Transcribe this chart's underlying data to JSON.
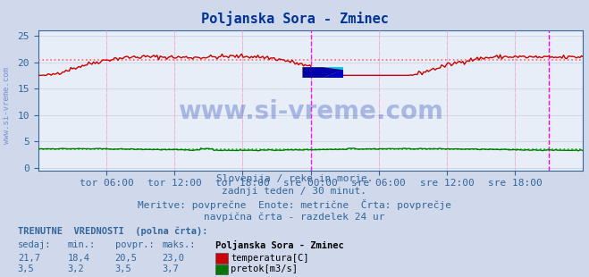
{
  "title": "Poljanska Sora - Zminec",
  "title_color": "#003399",
  "title_fontsize": 11,
  "bg_color": "#d0d8ec",
  "plot_bg_color": "#e8eef8",
  "x_ticks_labels": [
    "tor 06:00",
    "tor 12:00",
    "tor 18:00",
    "sre 00:00",
    "sre 06:00",
    "sre 12:00",
    "sre 18:00"
  ],
  "x_ticks_pos": [
    0.25,
    0.5,
    0.75,
    1.0,
    1.25,
    1.5,
    1.75
  ],
  "y_ticks": [
    0,
    5,
    10,
    15,
    20,
    25
  ],
  "ylim": [
    -0.5,
    26
  ],
  "xlim": [
    0,
    2.0
  ],
  "temp_color": "#cc0000",
  "flow_color": "#007700",
  "avg_temp_color": "#ff6666",
  "avg_flow_color": "#00cc00",
  "grid_color": "#ccccdd",
  "vline_magenta_color": "#ff00ff",
  "vline_pink_color": "#ffaacc",
  "vline_right_color": "#ff00ff",
  "watermark_color": "#3355bb",
  "watermark_alpha": 0.35,
  "footer_lines": [
    "Slovenija / reke in morje.",
    "zadnji teden / 30 minut.",
    "Meritve: povprečne  Enote: metrične  Črta: povprečje",
    "navpična črta - razdelek 24 ur"
  ],
  "footer_color": "#336699",
  "footer_fontsize": 8,
  "tick_label_color": "#336699",
  "tick_label_fontsize": 8,
  "legend_title": "Poljanska Sora - Zminec",
  "legend_entries": [
    {
      "label": "temperatura[C]",
      "color": "#cc0000"
    },
    {
      "label": "pretok[m3/s]",
      "color": "#007700"
    }
  ],
  "stats_header": [
    "sedaj:",
    "min.:",
    "povpr.:",
    "maks.:"
  ],
  "stats_rows": [
    [
      "21,7",
      "18,4",
      "20,5",
      "23,0"
    ],
    [
      "3,5",
      "3,2",
      "3,5",
      "3,7"
    ]
  ],
  "temp_avg_value": 20.5,
  "flow_avg_value": 3.5,
  "trenutne_label": "TRENUTNE  VREDNOSTI  (polna črta):"
}
